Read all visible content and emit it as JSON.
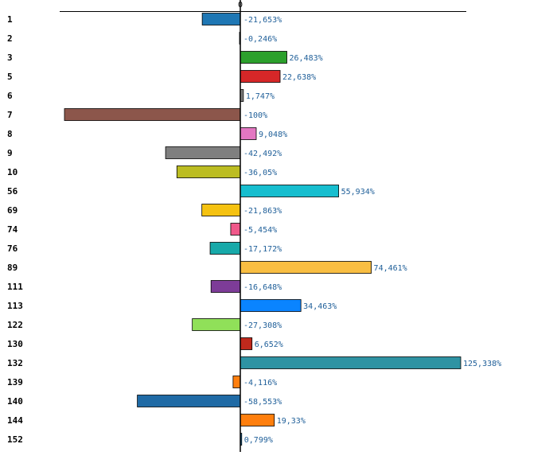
{
  "chart_data": {
    "type": "bar",
    "orientation": "horizontal",
    "zero_label": "0",
    "categories": [
      "1",
      "2",
      "3",
      "5",
      "6",
      "7",
      "8",
      "9",
      "10",
      "56",
      "69",
      "74",
      "76",
      "89",
      "111",
      "113",
      "122",
      "130",
      "132",
      "139",
      "140",
      "144",
      "152"
    ],
    "values": [
      -21.653,
      -0.246,
      26.483,
      22.638,
      1.747,
      -100,
      9.048,
      -42.492,
      -36.05,
      55.934,
      -21.863,
      -5.454,
      -17.172,
      74.461,
      -16.648,
      34.463,
      -27.308,
      6.652,
      125.338,
      -4.116,
      -58.553,
      19.33,
      0.799
    ],
    "labels": [
      "-21,653%",
      "-0,246%",
      "26,483%",
      "22,638%",
      "1,747%",
      "-100%",
      "9,048%",
      "-42,492%",
      "-36,05%",
      "55,934%",
      "-21,863%",
      "-5,454%",
      "-17,172%",
      "74,461%",
      "-16,648%",
      "34,463%",
      "-27,308%",
      "6,652%",
      "125,338%",
      "-4,116%",
      "-58,553%",
      "19,33%",
      "0,799%"
    ],
    "colors": [
      "#1f77b4",
      "#1f77b4",
      "#2ca02c",
      "#d62728",
      "#7f7f7f",
      "#8c564b",
      "#e377c2",
      "#7f7f7f",
      "#bcbd22",
      "#17becf",
      "#f5c211",
      "#f0588a",
      "#17a9a9",
      "#f9be42",
      "#7d3c98",
      "#0a84ff",
      "#90e059",
      "#c0291c",
      "#2e93a3",
      "#ff7f0e",
      "#1f6aa5",
      "#ff7f0e",
      "#1f77b4"
    ],
    "xlim": [
      -100,
      128
    ],
    "title": "",
    "xlabel": "",
    "ylabel": ""
  }
}
